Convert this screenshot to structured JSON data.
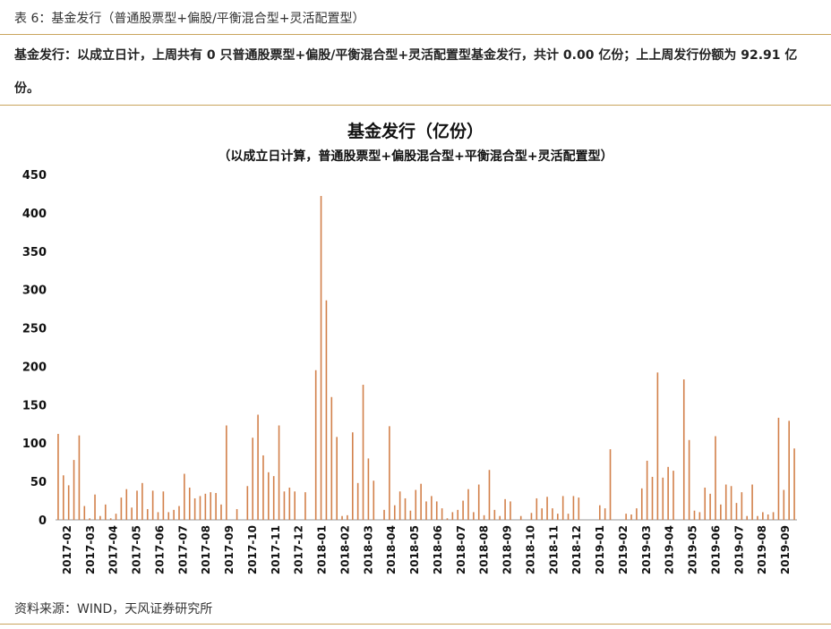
{
  "caption": "表 6：基金发行（普通股票型+偏股/平衡混合型+灵活配置型）",
  "summary": "基金发行：以成立日计，上周共有 0 只普通股票型+偏股/平衡混合型+灵活配置型基金发行，共计 0.00 亿份；上上周发行份额为 92.91 亿份。",
  "source": "资料来源：WIND，天风证券研究所",
  "colors": {
    "bar": "#d2804a",
    "rule": "#c9a45c",
    "axis": "#999999"
  },
  "chart_data": {
    "type": "bar",
    "title": "基金发行（亿份）",
    "subtitle": "（以成立日计算，普通股票型+偏股混合型+平衡混合型+灵活配置型）",
    "ylim": [
      0,
      450
    ],
    "yticks": [
      0,
      50,
      100,
      150,
      200,
      250,
      300,
      350,
      400,
      450
    ],
    "xrange": [
      "2017-02",
      "2019-09"
    ],
    "xtick_labels": [
      "2017-02",
      "2017-03",
      "2017-04",
      "2017-05",
      "2017-06",
      "2017-07",
      "2017-08",
      "2017-09",
      "2017-10",
      "2017-11",
      "2017-12",
      "2018-01",
      "2018-02",
      "2018-03",
      "2018-04",
      "2018-05",
      "2018-06",
      "2018-07",
      "2018-08",
      "2018-09",
      "2018-10",
      "2018-11",
      "2018-12",
      "2019-01",
      "2019-02",
      "2019-03",
      "2019-04",
      "2019-05",
      "2019-06",
      "2019-07",
      "2019-08",
      "2019-09"
    ],
    "grid": false,
    "series": [
      {
        "values": [
          112,
          58,
          45,
          78,
          110,
          18,
          2,
          33,
          5,
          20,
          2,
          8,
          29,
          40,
          16,
          38,
          48,
          14,
          38,
          10,
          37,
          10,
          13,
          18,
          60,
          42,
          28,
          31,
          34,
          36,
          35,
          20,
          123,
          0,
          14,
          0,
          44,
          107,
          137,
          84,
          62,
          57,
          123,
          37,
          42,
          37,
          0,
          36,
          0,
          195,
          422,
          286,
          160,
          108,
          5,
          6,
          114,
          48,
          176,
          80,
          51,
          0,
          13,
          122,
          19,
          37,
          28,
          12,
          39,
          47,
          24,
          31,
          24,
          15,
          2,
          10,
          13,
          25,
          40,
          10,
          46,
          6,
          65,
          13,
          5,
          27,
          24,
          0,
          5,
          0,
          9,
          28,
          15,
          30,
          15,
          8,
          31,
          8,
          31,
          29,
          0,
          0,
          0,
          19,
          15,
          92,
          0,
          0,
          8,
          7,
          15,
          41,
          77,
          56,
          192,
          55,
          69,
          64,
          0,
          183,
          104,
          12,
          10,
          42,
          34,
          109,
          20,
          46,
          44,
          22,
          36,
          5,
          46,
          5,
          10,
          7,
          10,
          133,
          39,
          129,
          93
        ]
      }
    ]
  }
}
